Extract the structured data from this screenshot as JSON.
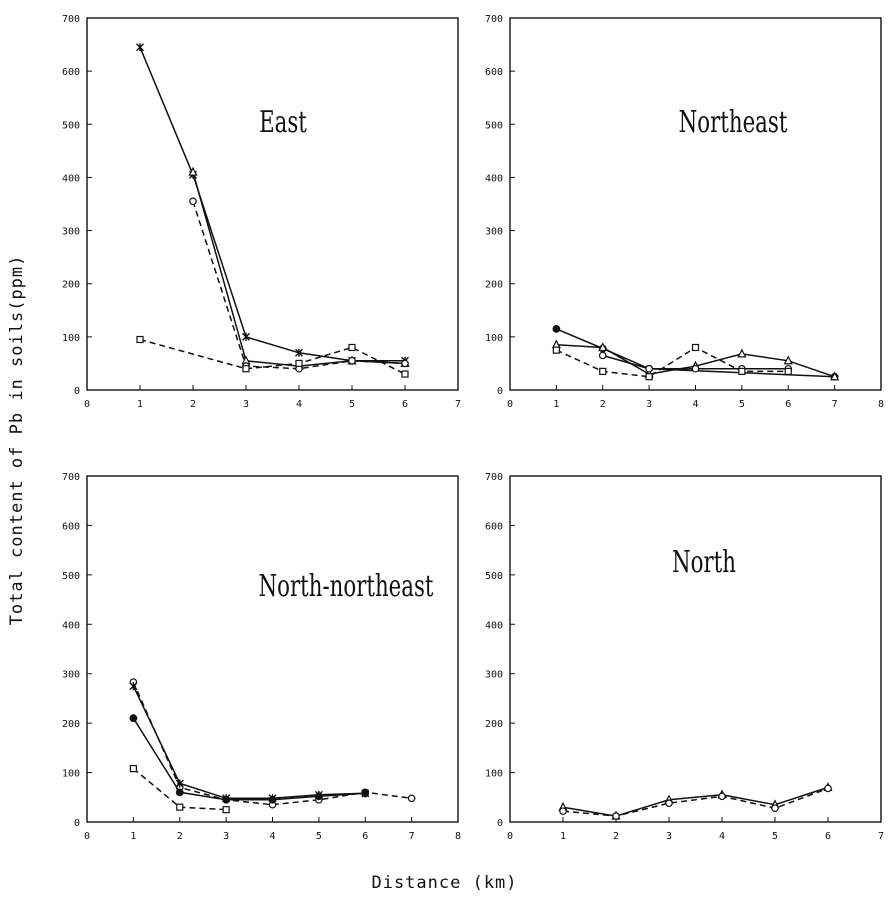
{
  "figure": {
    "ylabel": "Total content of Pb in soils(ppm)",
    "xlabel": "Distance (km)"
  },
  "chart_data": [
    {
      "type": "line",
      "title": "East",
      "xlim": [
        0,
        7
      ],
      "ylim": [
        0,
        700
      ],
      "xticks": [
        0,
        1,
        2,
        3,
        4,
        5,
        6,
        7
      ],
      "yticks": [
        0,
        100,
        200,
        300,
        400,
        500,
        600,
        700
      ],
      "series": [
        {
          "marker": "star",
          "dash": "solid",
          "x": [
            1,
            2,
            3,
            4,
            5,
            6
          ],
          "y": [
            645,
            405,
            100,
            70,
            55,
            55
          ]
        },
        {
          "marker": "triangle",
          "dash": "solid",
          "x": [
            2,
            3,
            4,
            5,
            6
          ],
          "y": [
            410,
            55,
            45,
            55,
            50
          ]
        },
        {
          "marker": "circle",
          "dash": "dashed",
          "x": [
            2,
            3,
            4,
            5,
            6
          ],
          "y": [
            355,
            45,
            40,
            55,
            50
          ]
        },
        {
          "marker": "square",
          "dash": "dashed",
          "x": [
            1,
            3,
            4,
            5,
            6
          ],
          "y": [
            95,
            40,
            50,
            80,
            30
          ]
        }
      ]
    },
    {
      "type": "line",
      "title": "Northeast",
      "xlim": [
        0,
        8
      ],
      "ylim": [
        0,
        700
      ],
      "xticks": [
        0,
        1,
        2,
        3,
        4,
        5,
        6,
        7,
        8
      ],
      "yticks": [
        0,
        100,
        200,
        300,
        400,
        500,
        600,
        700
      ],
      "series": [
        {
          "marker": "dot",
          "dash": "solid",
          "x": [
            1,
            2,
            3,
            7
          ],
          "y": [
            115,
            78,
            40,
            25
          ]
        },
        {
          "marker": "triangle",
          "dash": "solid",
          "x": [
            1,
            2,
            3,
            4,
            5,
            6,
            7
          ],
          "y": [
            85,
            80,
            30,
            45,
            68,
            55,
            25
          ]
        },
        {
          "marker": "circle",
          "dash": "solid",
          "x": [
            2,
            3,
            4,
            5,
            6
          ],
          "y": [
            65,
            40,
            40,
            40,
            40
          ]
        },
        {
          "marker": "square",
          "dash": "dashed",
          "x": [
            1,
            2,
            3,
            4,
            5,
            6
          ],
          "y": [
            75,
            35,
            25,
            80,
            35,
            35
          ]
        }
      ]
    },
    {
      "type": "line",
      "title": "North-northeast",
      "xlim": [
        0,
        8
      ],
      "ylim": [
        0,
        700
      ],
      "xticks": [
        0,
        1,
        2,
        3,
        4,
        5,
        6,
        7,
        8
      ],
      "yticks": [
        0,
        100,
        200,
        300,
        400,
        500,
        600,
        700
      ],
      "series": [
        {
          "marker": "circle",
          "dash": "dashed",
          "x": [
            1,
            2,
            3,
            4,
            5,
            6,
            7
          ],
          "y": [
            283,
            70,
            45,
            35,
            45,
            60,
            48
          ]
        },
        {
          "marker": "star",
          "dash": "solid",
          "x": [
            1,
            2,
            3,
            4,
            5,
            6
          ],
          "y": [
            275,
            78,
            48,
            48,
            55,
            58
          ]
        },
        {
          "marker": "dot",
          "dash": "solid",
          "x": [
            1,
            2,
            3,
            4,
            5,
            6
          ],
          "y": [
            210,
            60,
            45,
            45,
            52,
            58
          ]
        },
        {
          "marker": "square",
          "dash": "dashed",
          "x": [
            1,
            2,
            3
          ],
          "y": [
            108,
            30,
            25
          ]
        }
      ]
    },
    {
      "type": "line",
      "title": "North",
      "xlim": [
        0,
        7
      ],
      "ylim": [
        0,
        700
      ],
      "xticks": [
        0,
        1,
        2,
        3,
        4,
        5,
        6,
        7
      ],
      "yticks": [
        0,
        100,
        200,
        300,
        400,
        500,
        600,
        700
      ],
      "series": [
        {
          "marker": "triangle",
          "dash": "solid",
          "x": [
            1,
            2,
            3,
            4,
            5,
            6
          ],
          "y": [
            30,
            12,
            45,
            55,
            35,
            70
          ]
        },
        {
          "marker": "circle",
          "dash": "dashed",
          "x": [
            1,
            2,
            3,
            4,
            5,
            6
          ],
          "y": [
            22,
            12,
            38,
            52,
            28,
            68
          ]
        }
      ]
    }
  ]
}
